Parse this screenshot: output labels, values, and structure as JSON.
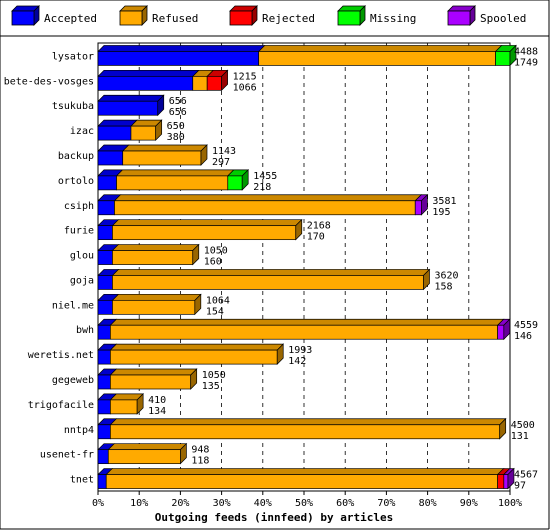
{
  "chart_data": {
    "type": "bar",
    "orientation": "horizontal",
    "stacked": true,
    "three_d": true,
    "xlabel": "Outgoing feeds (innfeed) by articles",
    "xticks": [
      "0%",
      "10%",
      "20%",
      "30%",
      "40%",
      "50%",
      "60%",
      "70%",
      "80%",
      "90%",
      "100%"
    ],
    "xlim": [
      0,
      100
    ],
    "grid": "vertical-dashed",
    "legend_placement": "top",
    "series": [
      {
        "name": "Accepted",
        "color": "#0000ff"
      },
      {
        "name": "Refused",
        "color": "#ffaa00"
      },
      {
        "name": "Rejected",
        "color": "#ff0000"
      },
      {
        "name": "Missing",
        "color": "#00ff00"
      },
      {
        "name": "Spooled",
        "color": "#aa00ff"
      }
    ],
    "rows": [
      {
        "name": "lysator",
        "offered": "4488",
        "accepted_count": "1749",
        "pct": [
          39,
          57.5,
          0,
          3.5,
          0
        ]
      },
      {
        "name": "bete-des-vosges",
        "offered": "1215",
        "accepted_count": "1066",
        "pct": [
          23,
          3.5,
          3.5,
          0,
          0
        ]
      },
      {
        "name": "tsukuba",
        "offered": "656",
        "accepted_count": "656",
        "pct": [
          14.5,
          0,
          0,
          0,
          0
        ]
      },
      {
        "name": "izac",
        "offered": "650",
        "accepted_count": "380",
        "pct": [
          8,
          6,
          0,
          0,
          0
        ]
      },
      {
        "name": "backup",
        "offered": "1143",
        "accepted_count": "297",
        "pct": [
          6,
          19,
          0,
          0,
          0
        ]
      },
      {
        "name": "ortolo",
        "offered": "1455",
        "accepted_count": "218",
        "pct": [
          4.5,
          27,
          0,
          3.5,
          0
        ]
      },
      {
        "name": "csiph",
        "offered": "3581",
        "accepted_count": "195",
        "pct": [
          4,
          73,
          0,
          0,
          1.5
        ]
      },
      {
        "name": "furie",
        "offered": "2168",
        "accepted_count": "170",
        "pct": [
          3.5,
          44.5,
          0,
          0,
          0
        ]
      },
      {
        "name": "glou",
        "offered": "1050",
        "accepted_count": "160",
        "pct": [
          3.5,
          19.5,
          0,
          0,
          0
        ]
      },
      {
        "name": "goja",
        "offered": "3620",
        "accepted_count": "158",
        "pct": [
          3.5,
          75.5,
          0,
          0,
          0
        ]
      },
      {
        "name": "niel.me",
        "offered": "1064",
        "accepted_count": "154",
        "pct": [
          3.5,
          20,
          0,
          0,
          0
        ]
      },
      {
        "name": "bwh",
        "offered": "4559",
        "accepted_count": "146",
        "pct": [
          3,
          94,
          0,
          0,
          1.5
        ]
      },
      {
        "name": "weretis.net",
        "offered": "1993",
        "accepted_count": "142",
        "pct": [
          3,
          40.5,
          0,
          0,
          0
        ]
      },
      {
        "name": "gegeweb",
        "offered": "1050",
        "accepted_count": "135",
        "pct": [
          3,
          19.5,
          0,
          0,
          0
        ]
      },
      {
        "name": "trigofacile",
        "offered": "410",
        "accepted_count": "134",
        "pct": [
          3,
          6.5,
          0,
          0,
          0
        ]
      },
      {
        "name": "nntp4",
        "offered": "4500",
        "accepted_count": "131",
        "pct": [
          3,
          94.5,
          0,
          0,
          0
        ]
      },
      {
        "name": "usenet-fr",
        "offered": "948",
        "accepted_count": "118",
        "pct": [
          2.5,
          17.5,
          0,
          0,
          0
        ]
      },
      {
        "name": "tnet",
        "offered": "4567",
        "accepted_count": "97",
        "pct": [
          2,
          95,
          1.5,
          0,
          1
        ]
      }
    ]
  }
}
